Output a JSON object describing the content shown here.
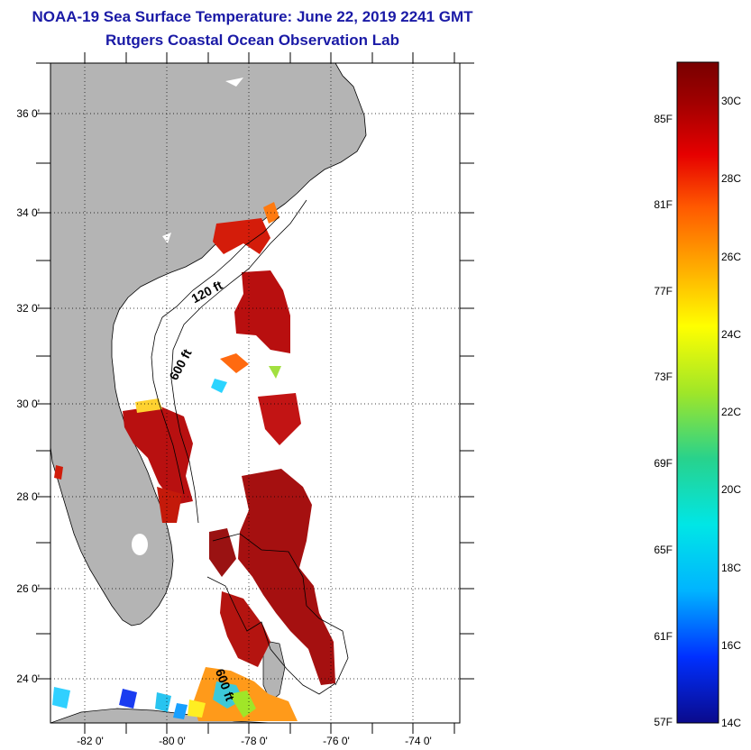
{
  "header": {
    "title": "NOAA-19 Sea Surface Temperature:  June 22, 2019 2241 GMT",
    "subtitle": "Rutgers Coastal Ocean Observation Lab"
  },
  "map": {
    "lat_labels": [
      "36 0'",
      "34 0'",
      "32 0'",
      "30 0'",
      "28 0'",
      "26 0'",
      "24 0'"
    ],
    "lon_labels": [
      "-82 0'",
      "-80 0'",
      "-78 0'",
      "-76 0'",
      "-74 0'"
    ],
    "lat_range": [
      23,
      37.1
    ],
    "lon_range": [
      -83,
      -73
    ],
    "contours": [
      {
        "label": "120 ft"
      },
      {
        "label": "600 ft"
      },
      {
        "label": "600 ft"
      }
    ],
    "colors": {
      "land": "#b4b4b4",
      "ocean": "#ffffff",
      "grid": "#000000"
    }
  },
  "colorbar": {
    "fahrenheit": [
      "85F",
      "81F",
      "77F",
      "73F",
      "69F",
      "65F",
      "61F",
      "57F"
    ],
    "celsius": [
      "30C",
      "28C",
      "26C",
      "24C",
      "22C",
      "20C",
      "18C",
      "16C",
      "14C"
    ],
    "stops": [
      "#0a0a8c",
      "#0030ff",
      "#00b4ff",
      "#00e6e6",
      "#28d28c",
      "#a0e628",
      "#ffff00",
      "#ffb400",
      "#ff5a00",
      "#e60000",
      "#a00000",
      "#780000"
    ]
  }
}
